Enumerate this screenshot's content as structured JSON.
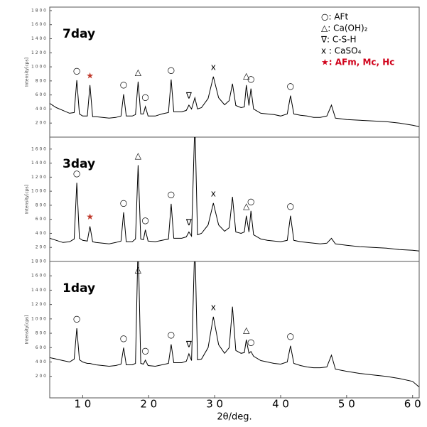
{
  "chart_data": [
    {
      "type": "line",
      "label": "7day",
      "ylabel": "Intensity[cps]",
      "color": "#000000",
      "ylim": [
        0,
        1850
      ],
      "yticks": [
        {
          "value": 200,
          "label": "2 0 0"
        },
        {
          "value": 400,
          "label": "4 0 0"
        },
        {
          "value": 600,
          "label": "6 0 0"
        },
        {
          "value": 800,
          "label": "8 0 0"
        },
        {
          "value": 1000,
          "label": "1 0 0 0"
        },
        {
          "value": 1200,
          "label": "1 2 0 0"
        },
        {
          "value": 1400,
          "label": "1 4 0 0"
        },
        {
          "value": 1600,
          "label": "1 6 0 0"
        },
        {
          "value": 1800,
          "label": "1 8 0 0"
        }
      ],
      "x": [
        5,
        6,
        7,
        8,
        8.7,
        9.1,
        9.5,
        10,
        10.7,
        11.1,
        11.5,
        12,
        13,
        14,
        15,
        15.8,
        16.2,
        16.6,
        17.5,
        18,
        18.4,
        18.8,
        19.2,
        19.5,
        19.9,
        21,
        22,
        23,
        23.4,
        23.8,
        25,
        25.7,
        26.1,
        26.5,
        27,
        27.4,
        28,
        29,
        29.8,
        30.6,
        31.5,
        32.2,
        32.7,
        33.2,
        34,
        34.5,
        34.8,
        35.2,
        35.5,
        35.9,
        37,
        38,
        39,
        40,
        41,
        41.5,
        42,
        43,
        44,
        45,
        46,
        47,
        47.7,
        48.3,
        50,
        52,
        54,
        56,
        58,
        60,
        61
      ],
      "values": [
        480,
        420,
        380,
        340,
        350,
        810,
        330,
        300,
        300,
        740,
        290,
        290,
        280,
        270,
        280,
        300,
        610,
        300,
        300,
        320,
        790,
        330,
        330,
        435,
        300,
        300,
        330,
        350,
        820,
        360,
        360,
        380,
        455,
        400,
        560,
        400,
        420,
        550,
        860,
        560,
        460,
        520,
        760,
        450,
        420,
        430,
        740,
        450,
        690,
        400,
        340,
        330,
        320,
        300,
        330,
        590,
        330,
        310,
        300,
        280,
        280,
        300,
        455,
        270,
        250,
        240,
        230,
        220,
        200,
        170,
        150
      ],
      "annotations": [
        {
          "text": "○",
          "x": 9.1
        },
        {
          "text": "★",
          "x": 11.1,
          "color": "#c0392b"
        },
        {
          "text": "○",
          "x": 16.2
        },
        {
          "text": "△",
          "x": 18.4
        },
        {
          "text": "○",
          "x": 19.5
        },
        {
          "text": "○",
          "x": 23.4
        },
        {
          "text": "∇",
          "x": 26.1
        },
        {
          "text": "x",
          "x": 29.8
        },
        {
          "text": "△",
          "x": 34.8
        },
        {
          "text": "○",
          "x": 35.5
        },
        {
          "text": "○",
          "x": 41.5
        }
      ],
      "legend": [
        {
          "text": "○: AFt"
        },
        {
          "text": "△: Ca(OH)₂"
        },
        {
          "text": "∇: C-S-H"
        },
        {
          "text": "x : CaSO₄"
        },
        {
          "text": "★: AFm, Mc, Hc",
          "color": "#d0021b"
        }
      ]
    },
    {
      "type": "line",
      "label": "3day",
      "ylabel": "Intensity[cps]",
      "color": "#000000",
      "ylim": [
        0,
        1770
      ],
      "yticks": [
        {
          "value": 200,
          "label": "2 0 0"
        },
        {
          "value": 400,
          "label": "4 0 0"
        },
        {
          "value": 600,
          "label": "6 0 0"
        },
        {
          "value": 800,
          "label": "8 0 0"
        },
        {
          "value": 1000,
          "label": "1 0 0 0"
        },
        {
          "value": 1200,
          "label": "1 2 0 0"
        },
        {
          "value": 1400,
          "label": "1 4 0 0"
        },
        {
          "value": 1600,
          "label": "1 6 0 0"
        }
      ],
      "x": [
        5,
        6,
        7,
        8,
        8.7,
        9.1,
        9.5,
        10,
        10.7,
        11.1,
        11.5,
        12,
        13,
        14,
        15,
        15.8,
        16.2,
        16.6,
        17.5,
        18,
        18.4,
        18.8,
        19.2,
        19.5,
        19.9,
        21,
        22,
        23,
        23.4,
        23.8,
        25,
        25.7,
        26.1,
        26.5,
        27,
        27.4,
        28,
        29,
        29.8,
        30.6,
        31.5,
        32.2,
        32.7,
        33.2,
        34,
        34.5,
        34.8,
        35.2,
        35.5,
        35.9,
        37,
        38,
        39,
        40,
        41,
        41.5,
        42,
        43,
        44,
        45,
        46,
        47,
        47.7,
        48.3,
        50,
        52,
        54,
        56,
        58,
        60,
        61
      ],
      "values": [
        330,
        300,
        270,
        280,
        320,
        1120,
        330,
        300,
        290,
        500,
        280,
        270,
        260,
        250,
        270,
        290,
        700,
        280,
        280,
        320,
        1370,
        320,
        310,
        450,
        290,
        280,
        300,
        320,
        820,
        330,
        330,
        350,
        420,
        360,
        2000,
        380,
        400,
        520,
        830,
        520,
        430,
        480,
        920,
        420,
        400,
        420,
        650,
        420,
        720,
        380,
        320,
        300,
        290,
        280,
        300,
        650,
        300,
        280,
        270,
        260,
        250,
        260,
        330,
        250,
        230,
        210,
        200,
        190,
        170,
        160,
        150
      ],
      "annotations": [
        {
          "text": "○",
          "x": 9.1
        },
        {
          "text": "★",
          "x": 11.1,
          "color": "#c0392b"
        },
        {
          "text": "○",
          "x": 16.2
        },
        {
          "text": "△",
          "x": 18.4
        },
        {
          "text": "○",
          "x": 19.5
        },
        {
          "text": "○",
          "x": 23.4
        },
        {
          "text": "∇",
          "x": 26.1
        },
        {
          "text": "x",
          "x": 29.8
        },
        {
          "text": "△",
          "x": 34.8
        },
        {
          "text": "○",
          "x": 35.5
        },
        {
          "text": "○",
          "x": 41.5
        }
      ]
    },
    {
      "type": "line",
      "label": "1day",
      "ylabel": "Intensity[cps]",
      "color": "#000000",
      "ylim": [
        -100,
        1800
      ],
      "yticks": [
        {
          "value": 200,
          "label": "2 0 0"
        },
        {
          "value": 400,
          "label": "4 0 0"
        },
        {
          "value": 600,
          "label": "6 0 0"
        },
        {
          "value": 800,
          "label": "8 0 0"
        },
        {
          "value": 1000,
          "label": "1 0 0 0"
        },
        {
          "value": 1200,
          "label": "1 2 0 0"
        },
        {
          "value": 1400,
          "label": "1 4 0 0"
        },
        {
          "value": 1600,
          "label": "1 6 0 0"
        },
        {
          "value": 1800,
          "label": "1 8 0 0"
        }
      ],
      "xlim": [
        5,
        61
      ],
      "xticks": [
        {
          "value": 10,
          "label": "1 0"
        },
        {
          "value": 20,
          "label": "2 0"
        },
        {
          "value": 30,
          "label": "3 0"
        },
        {
          "value": 40,
          "label": "4 0"
        },
        {
          "value": 50,
          "label": "5 0"
        },
        {
          "value": 60,
          "label": "6 0"
        }
      ],
      "xlabel": "2θ/deg.",
      "x": [
        5,
        6,
        7,
        8,
        8.7,
        9.1,
        9.5,
        10,
        10.7,
        11.1,
        11.5,
        12,
        13,
        14,
        15,
        15.8,
        16.2,
        16.6,
        17.5,
        18,
        18.4,
        18.8,
        19.2,
        19.5,
        19.9,
        21,
        22,
        23,
        23.4,
        23.8,
        25,
        25.7,
        26.1,
        26.5,
        27,
        27.4,
        28,
        29,
        29.8,
        30.6,
        31.5,
        32.2,
        32.7,
        33.2,
        34,
        34.5,
        34.8,
        35.2,
        35.5,
        35.9,
        37,
        38,
        39,
        40,
        41,
        41.5,
        42,
        43,
        44,
        45,
        46,
        47,
        47.7,
        48.3,
        50,
        52,
        54,
        56,
        58,
        60,
        61
      ],
      "values": [
        460,
        440,
        420,
        400,
        440,
        870,
        430,
        400,
        380,
        380,
        370,
        360,
        350,
        340,
        350,
        370,
        600,
        360,
        360,
        380,
        2100,
        380,
        370,
        425,
        350,
        340,
        360,
        380,
        645,
        390,
        390,
        410,
        515,
        420,
        2100,
        430,
        440,
        600,
        1030,
        640,
        520,
        600,
        1170,
        560,
        520,
        530,
        710,
        520,
        545,
        480,
        420,
        400,
        380,
        370,
        400,
        625,
        380,
        350,
        330,
        320,
        320,
        330,
        495,
        300,
        270,
        240,
        220,
        200,
        170,
        130,
        50
      ],
      "annotations": [
        {
          "text": "○",
          "x": 9.1
        },
        {
          "text": "○",
          "x": 16.2
        },
        {
          "text": "△",
          "x": 18.4
        },
        {
          "text": "○",
          "x": 19.5
        },
        {
          "text": "○",
          "x": 23.4
        },
        {
          "text": "∇",
          "x": 26.1
        },
        {
          "text": "x",
          "x": 29.8
        },
        {
          "text": "△",
          "x": 34.8
        },
        {
          "text": "○",
          "x": 35.5
        },
        {
          "text": "○",
          "x": 41.5
        }
      ]
    }
  ]
}
